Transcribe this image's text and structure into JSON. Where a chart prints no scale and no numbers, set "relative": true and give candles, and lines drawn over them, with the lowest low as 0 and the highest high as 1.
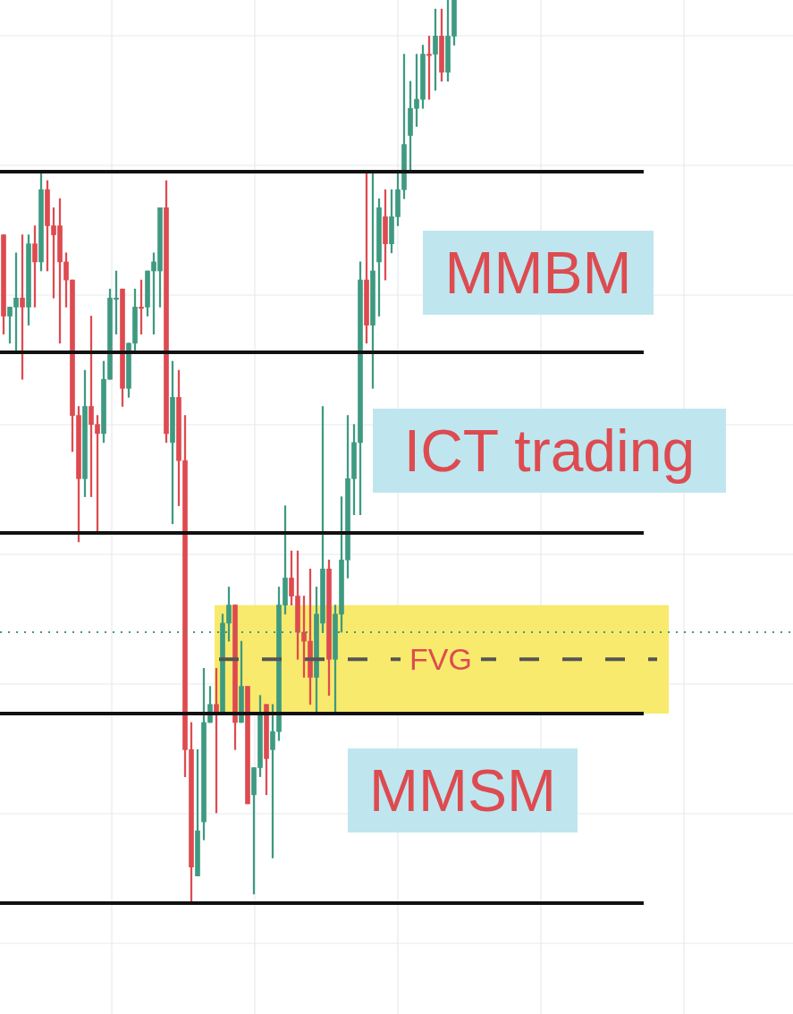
{
  "chart_data": {
    "type": "candlestick",
    "relative": true,
    "grid": true,
    "categories": [
      null,
      null,
      null,
      null,
      null,
      null,
      null,
      null,
      null,
      null,
      null,
      null,
      null,
      null,
      null,
      null,
      null,
      null,
      null,
      null,
      null,
      null,
      null,
      null,
      null,
      null,
      null,
      null,
      null,
      null,
      null,
      null,
      null,
      null,
      null,
      null,
      null,
      null,
      null,
      null,
      null,
      null,
      null,
      null,
      null,
      null,
      null,
      null,
      null,
      null,
      null,
      null,
      null,
      null,
      null,
      null,
      null,
      null,
      null,
      null,
      null,
      null,
      null,
      null,
      null,
      null,
      null,
      null,
      null,
      null,
      null,
      null,
      null
    ],
    "ohlc": [
      [
        0.74,
        0.74,
        0.63,
        0.65
      ],
      [
        0.65,
        0.66,
        0.62,
        0.66
      ],
      [
        0.66,
        0.72,
        0.61,
        0.67
      ],
      [
        0.67,
        0.74,
        0.58,
        0.66
      ],
      [
        0.66,
        0.74,
        0.64,
        0.73
      ],
      [
        0.73,
        0.75,
        0.66,
        0.71
      ],
      [
        0.71,
        0.81,
        0.7,
        0.79
      ],
      [
        0.79,
        0.8,
        0.7,
        0.75
      ],
      [
        0.75,
        0.77,
        0.67,
        0.74
      ],
      [
        0.75,
        0.78,
        0.62,
        0.71
      ],
      [
        0.71,
        0.72,
        0.66,
        0.69
      ],
      [
        0.69,
        0.69,
        0.5,
        0.54
      ],
      [
        0.54,
        0.55,
        0.4,
        0.47
      ],
      [
        0.47,
        0.59,
        0.45,
        0.55
      ],
      [
        0.55,
        0.65,
        0.45,
        0.53
      ],
      [
        0.53,
        0.54,
        0.41,
        0.52
      ],
      [
        0.52,
        0.6,
        0.51,
        0.58
      ],
      [
        0.58,
        0.68,
        0.58,
        0.67
      ],
      [
        0.67,
        0.7,
        0.63,
        0.67
      ],
      [
        0.68,
        0.68,
        0.55,
        0.57
      ],
      [
        0.57,
        0.62,
        0.56,
        0.62
      ],
      [
        0.62,
        0.68,
        0.61,
        0.66
      ],
      [
        0.66,
        0.69,
        0.63,
        0.66
      ],
      [
        0.66,
        0.7,
        0.65,
        0.7
      ],
      [
        0.7,
        0.72,
        0.63,
        0.71
      ],
      [
        0.7,
        0.77,
        0.66,
        0.77
      ],
      [
        0.77,
        0.8,
        0.51,
        0.52
      ],
      [
        0.51,
        0.6,
        0.42,
        0.56
      ],
      [
        0.56,
        0.59,
        0.44,
        0.49
      ],
      [
        0.49,
        0.54,
        0.14,
        0.17
      ],
      [
        0.17,
        0.2,
        0.0,
        0.04
      ],
      [
        0.03,
        0.17,
        0.03,
        0.08
      ],
      [
        0.09,
        0.26,
        0.07,
        0.2
      ],
      [
        0.2,
        0.24,
        0.2,
        0.22
      ],
      [
        0.22,
        0.26,
        0.1,
        0.21
      ],
      [
        0.21,
        0.32,
        0.21,
        0.31
      ],
      [
        0.31,
        0.35,
        0.29,
        0.33
      ],
      [
        0.33,
        0.33,
        0.17,
        0.2
      ],
      [
        0.2,
        0.29,
        0.2,
        0.24
      ],
      [
        0.24,
        0.24,
        0.11,
        0.11
      ],
      [
        0.12,
        0.15,
        0.01,
        0.15
      ],
      [
        0.15,
        0.23,
        0.14,
        0.21
      ],
      [
        0.22,
        0.22,
        0.12,
        0.16
      ],
      [
        0.17,
        0.22,
        0.05,
        0.19
      ],
      [
        0.19,
        0.35,
        0.18,
        0.33
      ],
      [
        0.33,
        0.44,
        0.32,
        0.36
      ],
      [
        0.36,
        0.39,
        0.33,
        0.34
      ],
      [
        0.34,
        0.39,
        0.27,
        0.3
      ],
      [
        0.3,
        0.34,
        0.25,
        0.29
      ],
      [
        0.29,
        0.37,
        0.22,
        0.25
      ],
      [
        0.25,
        0.35,
        0.21,
        0.32
      ],
      [
        0.31,
        0.55,
        0.3,
        0.37
      ],
      [
        0.37,
        0.38,
        0.23,
        0.27
      ],
      [
        0.27,
        0.33,
        0.21,
        0.32
      ],
      [
        0.32,
        0.45,
        0.3,
        0.38
      ],
      [
        0.38,
        0.54,
        0.36,
        0.47
      ],
      [
        0.47,
        0.53,
        0.43,
        0.51
      ],
      [
        0.51,
        0.71,
        0.43,
        0.69
      ],
      [
        0.69,
        0.81,
        0.62,
        0.64
      ],
      [
        0.64,
        0.81,
        0.57,
        0.7
      ],
      [
        0.71,
        0.78,
        0.65,
        0.77
      ],
      [
        0.76,
        0.79,
        0.69,
        0.73
      ],
      [
        0.73,
        0.79,
        0.72,
        0.76
      ],
      [
        0.76,
        0.81,
        0.75,
        0.79
      ],
      [
        0.79,
        0.94,
        0.78,
        0.84
      ],
      [
        0.85,
        0.91,
        0.81,
        0.88
      ],
      [
        0.88,
        0.94,
        0.86,
        0.89
      ],
      [
        0.89,
        0.95,
        0.88,
        0.94
      ],
      [
        0.94,
        0.96,
        0.89,
        0.94
      ],
      [
        0.94,
        0.99,
        0.9,
        0.96
      ],
      [
        0.96,
        0.99,
        0.91,
        0.92
      ],
      [
        0.92,
        1,
        0.91,
        0.96
      ],
      [
        0.96,
        1,
        0.95,
        1
      ]
    ],
    "colors": [
      "#dd4b50",
      "#3e9a80",
      "#3e9a80",
      "#dd4b50",
      "#3e9a80",
      "#dd4b50",
      "#3e9a80",
      "#dd4b50",
      "#dd4b50",
      "#dd4b50",
      "#dd4b50",
      "#dd4b50",
      "#dd4b50",
      "#3e9a80",
      "#dd4b50",
      "#dd4b50",
      "#3e9a80",
      "#3e9a80",
      "#3e9a80",
      "#dd4b50",
      "#3e9a80",
      "#3e9a80",
      "#dd4b50",
      "#3e9a80",
      "#3e9a80",
      "#3e9a80",
      "#dd4b50",
      "#3e9a80",
      "#dd4b50",
      "#dd4b50",
      "#dd4b50",
      "#3e9a80",
      "#3e9a80",
      "#3e9a80",
      "#dd4b50",
      "#3e9a80",
      "#3e9a80",
      "#dd4b50",
      "#3e9a80",
      "#dd4b50",
      "#3e9a80",
      "#3e9a80",
      "#dd4b50",
      "#3e9a80",
      "#3e9a80",
      "#3e9a80",
      "#dd4b50",
      "#dd4b50",
      "#dd4b50",
      "#dd4b50",
      "#3e9a80",
      "#3e9a80",
      "#dd4b50",
      "#3e9a80",
      "#3e9a80",
      "#3e9a80",
      "#3e9a80",
      "#3e9a80",
      "#dd4b50",
      "#3e9a80",
      "#3e9a80",
      "#dd4b50",
      "#3e9a80",
      "#3e9a80",
      "#3e9a80",
      "#3e9a80",
      "#3e9a80",
      "#3e9a80",
      "#dd4b50",
      "#3e9a80",
      "#dd4b50",
      "#3e9a80",
      "#3e9a80"
    ],
    "ref_lines": [
      {
        "axis": "y",
        "value": 0.81,
        "color": "#111111",
        "line_style": "solid"
      },
      {
        "axis": "y",
        "value": 0.61,
        "color": "#111111",
        "line_style": "solid"
      },
      {
        "axis": "y",
        "value": 0.41,
        "color": "#111111",
        "line_style": "solid"
      },
      {
        "axis": "y",
        "value": 0.21,
        "color": "#111111",
        "line_style": "solid"
      },
      {
        "axis": "y",
        "value": 0,
        "color": "#111111",
        "line_style": "solid"
      },
      {
        "axis": "y",
        "value": 0.3,
        "color": "#3e9a80",
        "line_style": "dotted"
      },
      {
        "axis": "y",
        "value": 0.27,
        "color": "#555555",
        "line_style": "dashed"
      }
    ],
    "bands": [
      {
        "axis": "y",
        "from": 0.21,
        "to": 0.33,
        "label": "FVG",
        "color": "#f8ea6c"
      }
    ],
    "annotations": [
      "MMBM",
      "ICT trading",
      "MMSM"
    ]
  }
}
